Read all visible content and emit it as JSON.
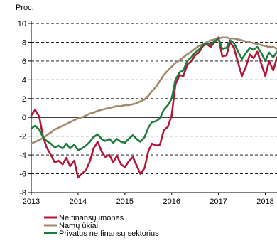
{
  "chart_data": {
    "type": "line",
    "title": "",
    "unit_label": "Proc.",
    "xlabel": "",
    "ylabel": "",
    "ylim": [
      -8,
      10
    ],
    "y_ticks": [
      -8,
      -6,
      -4,
      -2,
      0,
      2,
      4,
      6,
      8,
      10
    ],
    "xlim": [
      2013.0,
      2018.25
    ],
    "x_ticks": [
      2013,
      2014,
      2015,
      2016,
      2017,
      2018
    ],
    "x_tick_labels": [
      "2013",
      "2014",
      "2015",
      "2016",
      "2017",
      "2018"
    ],
    "grid": "horizontal dashed",
    "legend_position": "bottom-left",
    "series": [
      {
        "name": "Ne finansų įmonės",
        "color": "#b5173b",
        "x": [
          2013.0,
          2013.08,
          2013.17,
          2013.25,
          2013.33,
          2013.42,
          2013.5,
          2013.58,
          2013.67,
          2013.75,
          2013.83,
          2013.92,
          2014.0,
          2014.08,
          2014.17,
          2014.25,
          2014.33,
          2014.42,
          2014.5,
          2014.58,
          2014.67,
          2014.75,
          2014.83,
          2014.92,
          2015.0,
          2015.08,
          2015.17,
          2015.25,
          2015.33,
          2015.42,
          2015.5,
          2015.58,
          2015.67,
          2015.75,
          2015.83,
          2015.92,
          2016.0,
          2016.08,
          2016.17,
          2016.25,
          2016.33,
          2016.42,
          2016.5,
          2016.58,
          2016.67,
          2016.75,
          2016.83,
          2016.92,
          2017.0,
          2017.08,
          2017.17,
          2017.25,
          2017.33,
          2017.42,
          2017.5,
          2017.58,
          2017.67,
          2017.75,
          2017.83,
          2017.92,
          2018.0,
          2018.08,
          2018.17,
          2018.25
        ],
        "values": [
          0.2,
          0.8,
          0.1,
          -2.0,
          -3.2,
          -4.0,
          -4.8,
          -4.6,
          -5.0,
          -4.3,
          -5.2,
          -4.6,
          -6.4,
          -6.0,
          -5.6,
          -4.7,
          -3.3,
          -2.6,
          -3.6,
          -4.2,
          -4.0,
          -4.8,
          -4.1,
          -5.0,
          -5.3,
          -4.7,
          -4.2,
          -5.1,
          -6.0,
          -5.4,
          -3.6,
          -2.8,
          -3.0,
          -2.9,
          -1.4,
          -1.0,
          0.2,
          3.5,
          4.5,
          4.4,
          5.6,
          6.0,
          6.6,
          6.9,
          7.6,
          7.8,
          7.5,
          8.0,
          8.5,
          6.5,
          6.6,
          8.0,
          7.4,
          5.8,
          4.4,
          5.3,
          6.7,
          6.3,
          7.0,
          5.6,
          4.4,
          6.0,
          5.0,
          6.4
        ]
      },
      {
        "name": "Namų ūkiai",
        "color": "#a3896b",
        "x": [
          2013.0,
          2013.08,
          2013.17,
          2013.25,
          2013.33,
          2013.42,
          2013.5,
          2013.58,
          2013.67,
          2013.75,
          2013.83,
          2013.92,
          2014.0,
          2014.08,
          2014.17,
          2014.25,
          2014.33,
          2014.42,
          2014.5,
          2014.58,
          2014.67,
          2014.75,
          2014.83,
          2014.92,
          2015.0,
          2015.08,
          2015.17,
          2015.25,
          2015.33,
          2015.42,
          2015.5,
          2015.58,
          2015.67,
          2015.75,
          2015.83,
          2015.92,
          2016.0,
          2016.08,
          2016.17,
          2016.25,
          2016.33,
          2016.42,
          2016.5,
          2016.58,
          2016.67,
          2016.75,
          2016.83,
          2016.92,
          2017.0,
          2017.08,
          2017.17,
          2017.25,
          2017.33,
          2017.42,
          2017.5,
          2017.58,
          2017.67,
          2017.75,
          2017.83,
          2017.92,
          2018.0,
          2018.08,
          2018.17,
          2018.25
        ],
        "values": [
          -2.8,
          -2.6,
          -2.4,
          -2.2,
          -1.9,
          -1.6,
          -1.3,
          -1.1,
          -0.9,
          -0.7,
          -0.5,
          -0.3,
          -0.1,
          0.0,
          0.2,
          0.4,
          0.5,
          0.7,
          0.8,
          0.9,
          1.0,
          1.1,
          1.2,
          1.2,
          1.3,
          1.3,
          1.4,
          1.5,
          1.7,
          1.9,
          2.3,
          2.8,
          3.3,
          3.9,
          4.5,
          5.0,
          5.4,
          5.8,
          6.1,
          6.4,
          6.7,
          7.0,
          7.3,
          7.6,
          7.8,
          8.0,
          8.2,
          8.3,
          8.4,
          8.5,
          8.5,
          8.4,
          8.4,
          8.3,
          8.2,
          8.1,
          8.0,
          7.9,
          7.8,
          7.7,
          7.6,
          7.5,
          7.5,
          7.3
        ]
      },
      {
        "name": "Privatus ne finansų sektorius",
        "color": "#1e7d3c",
        "x": [
          2013.0,
          2013.08,
          2013.17,
          2013.25,
          2013.33,
          2013.42,
          2013.5,
          2013.58,
          2013.67,
          2013.75,
          2013.83,
          2013.92,
          2014.0,
          2014.08,
          2014.17,
          2014.25,
          2014.33,
          2014.42,
          2014.5,
          2014.58,
          2014.67,
          2014.75,
          2014.83,
          2014.92,
          2015.0,
          2015.08,
          2015.17,
          2015.25,
          2015.33,
          2015.42,
          2015.5,
          2015.58,
          2015.67,
          2015.75,
          2015.83,
          2015.92,
          2016.0,
          2016.08,
          2016.17,
          2016.25,
          2016.33,
          2016.42,
          2016.5,
          2016.58,
          2016.67,
          2016.75,
          2016.83,
          2016.92,
          2017.0,
          2017.08,
          2017.17,
          2017.25,
          2017.33,
          2017.42,
          2017.5,
          2017.58,
          2017.67,
          2017.75,
          2017.83,
          2017.92,
          2018.0,
          2018.08,
          2018.17,
          2018.25
        ],
        "values": [
          -1.2,
          -0.9,
          -1.3,
          -2.1,
          -2.5,
          -2.8,
          -3.2,
          -3.0,
          -3.3,
          -2.8,
          -3.3,
          -2.9,
          -3.5,
          -3.3,
          -3.0,
          -2.6,
          -2.1,
          -1.8,
          -2.3,
          -2.5,
          -2.3,
          -2.7,
          -2.3,
          -2.6,
          -2.7,
          -2.3,
          -1.9,
          -2.3,
          -2.6,
          -2.1,
          -1.1,
          -0.5,
          -0.4,
          -0.1,
          0.8,
          1.3,
          2.0,
          4.0,
          4.8,
          5.0,
          6.0,
          6.4,
          6.9,
          7.2,
          7.7,
          7.9,
          7.8,
          8.1,
          8.4,
          7.3,
          7.4,
          8.2,
          7.9,
          7.0,
          6.2,
          6.8,
          7.4,
          7.2,
          7.5,
          6.8,
          6.0,
          6.9,
          6.4,
          7.0
        ]
      }
    ]
  }
}
